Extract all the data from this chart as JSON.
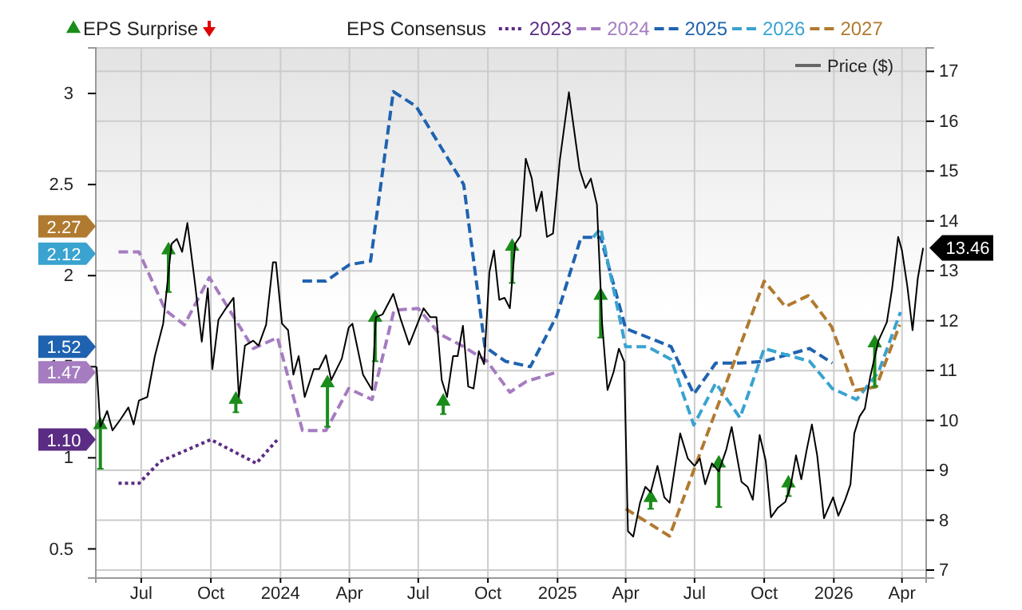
{
  "chart_data": {
    "type": "line",
    "xlim": [
      "2023-05-02",
      "2026-05-03"
    ],
    "xticks": [
      {
        "value": "2023-07-01",
        "label": "Jul"
      },
      {
        "value": "2023-10-01",
        "label": "Oct"
      },
      {
        "value": "2024-01-01",
        "label": "2024"
      },
      {
        "value": "2024-04-01",
        "label": "Apr"
      },
      {
        "value": "2024-07-01",
        "label": "Jul"
      },
      {
        "value": "2024-10-01",
        "label": "Oct"
      },
      {
        "value": "2025-01-01",
        "label": "2025"
      },
      {
        "value": "2025-04-01",
        "label": "Apr"
      },
      {
        "value": "2025-07-01",
        "label": "Jul"
      },
      {
        "value": "2025-10-01",
        "label": "Oct"
      },
      {
        "value": "2026-01-01",
        "label": "2026"
      },
      {
        "value": "2026-04-01",
        "label": "Apr"
      }
    ],
    "ylim": [
      0.34,
      3.25
    ],
    "yticks": [
      0.5,
      1,
      1.5,
      2,
      2.5,
      3
    ],
    "y2lim": [
      6.84,
      17.47
    ],
    "y2ticks": [
      7,
      8,
      9,
      10,
      11,
      12,
      13,
      14,
      15,
      16,
      17
    ],
    "grid": true,
    "legend": "top",
    "marker": "none",
    "legend_title": "EPS Consensus",
    "annotations": [
      {
        "text": "1.10",
        "y": 1.1
      },
      {
        "text": "1.47",
        "y": 1.47
      },
      "1.52",
      {
        "text": "2.12",
        "y": 2.12
      },
      {
        "text": "2.27",
        "y": 2.27
      },
      "13.46"
    ],
    "series": [
      {
        "name": "EPS Surprise",
        "type": "scatter",
        "marker": "triangle",
        "color": "#1a8c1a",
        "x": [
          "2023-05-08",
          "2023-08-06",
          "2023-11-03",
          "2024-03-03",
          "2024-05-05",
          "2024-08-03",
          "2024-11-02",
          "2025-02-27",
          "2025-05-04",
          "2025-08-02",
          "2025-11-02",
          "2026-02-24"
        ],
        "values": [
          1.18,
          2.14,
          1.32,
          1.41,
          1.77,
          1.31,
          2.16,
          1.89,
          0.78,
          0.97,
          0.86,
          1.63
        ],
        "errors": [
          [
            0.94,
            1.18
          ],
          [
            1.91,
            2.14
          ],
          [
            1.25,
            1.32
          ],
          [
            1.17,
            1.41
          ],
          [
            1.53,
            1.77
          ],
          [
            1.24,
            1.31
          ],
          [
            1.96,
            2.16
          ],
          [
            1.66,
            1.89
          ],
          [
            0.72,
            0.78
          ],
          [
            0.73,
            0.97
          ],
          [
            0.79,
            0.86
          ],
          [
            1.39,
            1.63
          ]
        ]
      },
      {
        "name": "2023",
        "line_style": "dotted",
        "color": "#5b2c83",
        "x": [
          "2023-06-01",
          "2023-06-28",
          "2023-07-26",
          "2023-08-23",
          "2023-10-01",
          "2023-11-30",
          "2023-12-28"
        ],
        "values": [
          0.86,
          0.86,
          0.98,
          1.03,
          1.1,
          0.97,
          1.1
        ]
      },
      {
        "name": "2024",
        "line_style": "dashed",
        "color": "#a57cc0",
        "x": [
          "2023-06-01",
          "2023-06-28",
          "2023-08-02",
          "2023-08-27",
          "2023-09-29",
          "2023-11-26",
          "2023-12-28",
          "2024-01-30",
          "2024-03-01",
          "2024-03-31",
          "2024-05-01",
          "2024-05-30",
          "2024-07-01",
          "2024-07-29",
          "2024-08-30",
          "2024-09-30",
          "2024-10-30",
          "2024-11-21",
          "2024-12-31"
        ],
        "values": [
          2.13,
          2.13,
          1.81,
          1.73,
          1.99,
          1.6,
          1.66,
          1.15,
          1.15,
          1.38,
          1.32,
          1.81,
          1.82,
          1.68,
          1.61,
          1.53,
          1.36,
          1.42,
          1.47
        ]
      },
      {
        "name": "2025",
        "line_style": "dashed",
        "color": "#1f63b0",
        "x": [
          "2024-01-30",
          "2024-03-01",
          "2024-04-01",
          "2024-04-29",
          "2024-05-29",
          "2024-06-28",
          "2024-08-30",
          "2024-09-27",
          "2024-10-24",
          "2024-11-26",
          "2024-12-31",
          "2025-02-01",
          "2025-02-27",
          "2025-04-01",
          "2025-05-31",
          "2025-06-30",
          "2025-07-29",
          "2025-08-30",
          "2025-10-01",
          "2025-11-30",
          "2025-12-30"
        ],
        "values": [
          1.97,
          1.97,
          2.06,
          2.08,
          3.01,
          2.93,
          2.5,
          1.61,
          1.53,
          1.5,
          1.78,
          2.21,
          2.21,
          1.71,
          1.61,
          1.35,
          1.52,
          1.52,
          1.53,
          1.6,
          1.52
        ]
      },
      {
        "name": "2026",
        "line_style": "dashed",
        "color": "#3aa3d0",
        "x": [
          "2025-02-17",
          "2025-02-27",
          "2025-04-01",
          "2025-04-30",
          "2025-05-31",
          "2025-06-30",
          "2025-07-29",
          "2025-08-30",
          "2025-10-01",
          "2025-11-30",
          "2025-12-30",
          "2026-01-31",
          "2026-03-01",
          "2026-03-30"
        ],
        "values": [
          2.21,
          2.26,
          1.61,
          1.61,
          1.54,
          1.18,
          1.41,
          1.22,
          1.6,
          1.53,
          1.38,
          1.32,
          1.47,
          1.8
        ]
      },
      {
        "name": "2027",
        "line_style": "dashed",
        "color": "#b07a30",
        "x": [
          "2025-04-01",
          "2025-05-29",
          "2025-06-28",
          "2025-10-01",
          "2025-10-29",
          "2025-11-28",
          "2025-12-29",
          "2026-01-29",
          "2026-02-26",
          "2026-03-29"
        ],
        "values": [
          0.72,
          0.57,
          0.91,
          1.97,
          1.83,
          1.89,
          1.72,
          1.37,
          1.39,
          1.73
        ]
      },
      {
        "name": "Price ($)",
        "axis": "y2",
        "line_style": "solid",
        "color": "#000000",
        "x": [
          "2023-05-03",
          "2023-05-08",
          "2023-05-17",
          "2023-05-24",
          "2023-06-04",
          "2023-06-14",
          "2023-06-21",
          "2023-06-28",
          "2023-07-09",
          "2023-07-19",
          "2023-07-30",
          "2023-08-10",
          "2023-08-17",
          "2023-08-24",
          "2023-08-31",
          "2023-09-10",
          "2023-09-19",
          "2023-09-27",
          "2023-10-03",
          "2023-10-11",
          "2023-10-21",
          "2023-10-31",
          "2023-11-07",
          "2023-11-15",
          "2023-11-26",
          "2023-12-03",
          "2023-12-13",
          "2023-12-22",
          "2023-12-26",
          "2024-01-03",
          "2024-01-11",
          "2024-01-18",
          "2024-01-25",
          "2024-02-02",
          "2024-02-14",
          "2024-02-21",
          "2024-03-01",
          "2024-03-08",
          "2024-03-22",
          "2024-03-31",
          "2024-04-05",
          "2024-04-19",
          "2024-05-01",
          "2024-05-06",
          "2024-05-15",
          "2024-05-29",
          "2024-06-08",
          "2024-06-19",
          "2024-07-08",
          "2024-07-17",
          "2024-07-25",
          "2024-08-01",
          "2024-08-08",
          "2024-08-16",
          "2024-08-22",
          "2024-08-29",
          "2024-09-05",
          "2024-09-12",
          "2024-09-19",
          "2024-09-26",
          "2024-10-03",
          "2024-10-09",
          "2024-10-16",
          "2024-10-23",
          "2024-10-30",
          "2024-11-06",
          "2024-11-13",
          "2024-11-20",
          "2024-11-28",
          "2024-12-04",
          "2024-12-11",
          "2024-12-18",
          "2024-12-26",
          "2025-01-04",
          "2025-01-16",
          "2025-01-30",
          "2025-02-07",
          "2025-02-14",
          "2025-02-22",
          "2025-03-01",
          "2025-03-08",
          "2025-03-16",
          "2025-03-23",
          "2025-03-30",
          "2025-04-04",
          "2025-04-11",
          "2025-04-20",
          "2025-04-27",
          "2025-05-04",
          "2025-05-13",
          "2025-05-22",
          "2025-05-29",
          "2025-06-12",
          "2025-06-22",
          "2025-07-01",
          "2025-07-08",
          "2025-07-15",
          "2025-07-24",
          "2025-08-02",
          "2025-08-12",
          "2025-08-19",
          "2025-09-01",
          "2025-09-09",
          "2025-09-16",
          "2025-09-25",
          "2025-10-03",
          "2025-10-10",
          "2025-10-19",
          "2025-10-29",
          "2025-11-05",
          "2025-11-12",
          "2025-11-19",
          "2025-11-26",
          "2025-12-03",
          "2025-12-10",
          "2025-12-19",
          "2025-12-31",
          "2026-01-07",
          "2026-01-16",
          "2026-01-23",
          "2026-01-28",
          "2026-02-04",
          "2026-02-11",
          "2026-02-18",
          "2026-03-01",
          "2026-03-12",
          "2026-03-19",
          "2026-03-27",
          "2026-04-01",
          "2026-04-08",
          "2026-04-15",
          "2026-04-22",
          "2026-04-29"
        ],
        "values": [
          11.08,
          9.87,
          10.19,
          9.8,
          10.03,
          10.26,
          9.92,
          10.4,
          10.47,
          11.29,
          11.94,
          13.54,
          13.64,
          13.38,
          13.96,
          12.75,
          11.58,
          12.65,
          11.03,
          12.02,
          12.25,
          12.46,
          10.47,
          11.5,
          11.6,
          11.5,
          11.92,
          13.17,
          13.17,
          11.94,
          11.81,
          10.92,
          11.29,
          10.47,
          11.03,
          11.03,
          11.31,
          10.81,
          11.24,
          11.86,
          11.94,
          10.92,
          10.61,
          12.07,
          12.13,
          12.54,
          12.02,
          11.52,
          12.25,
          12.07,
          12.07,
          10.81,
          10.47,
          11.29,
          11.29,
          11.9,
          10.68,
          10.64,
          11.39,
          11.13,
          12.98,
          13.41,
          12.42,
          12.46,
          12.25,
          13.54,
          13.7,
          15.25,
          14.85,
          14.2,
          14.59,
          13.68,
          13.75,
          15.22,
          16.58,
          15.04,
          14.66,
          14.85,
          14.33,
          11.92,
          10.61,
          10.97,
          11.44,
          11.18,
          7.78,
          7.67,
          8.35,
          8.67,
          8.56,
          9.09,
          8.46,
          8.35,
          9.74,
          9.24,
          9.09,
          9.24,
          8.72,
          9.14,
          8.98,
          9.42,
          9.87,
          8.77,
          8.67,
          8.41,
          9.71,
          9.19,
          8.06,
          8.25,
          8.37,
          8.69,
          9.3,
          8.82,
          9.4,
          9.92,
          9.3,
          8.04,
          8.46,
          8.09,
          8.41,
          8.72,
          9.74,
          10.08,
          10.24,
          10.87,
          11.6,
          11.97,
          12.65,
          13.68,
          13.41,
          12.7,
          11.81,
          12.86,
          13.46
        ]
      }
    ]
  }
}
